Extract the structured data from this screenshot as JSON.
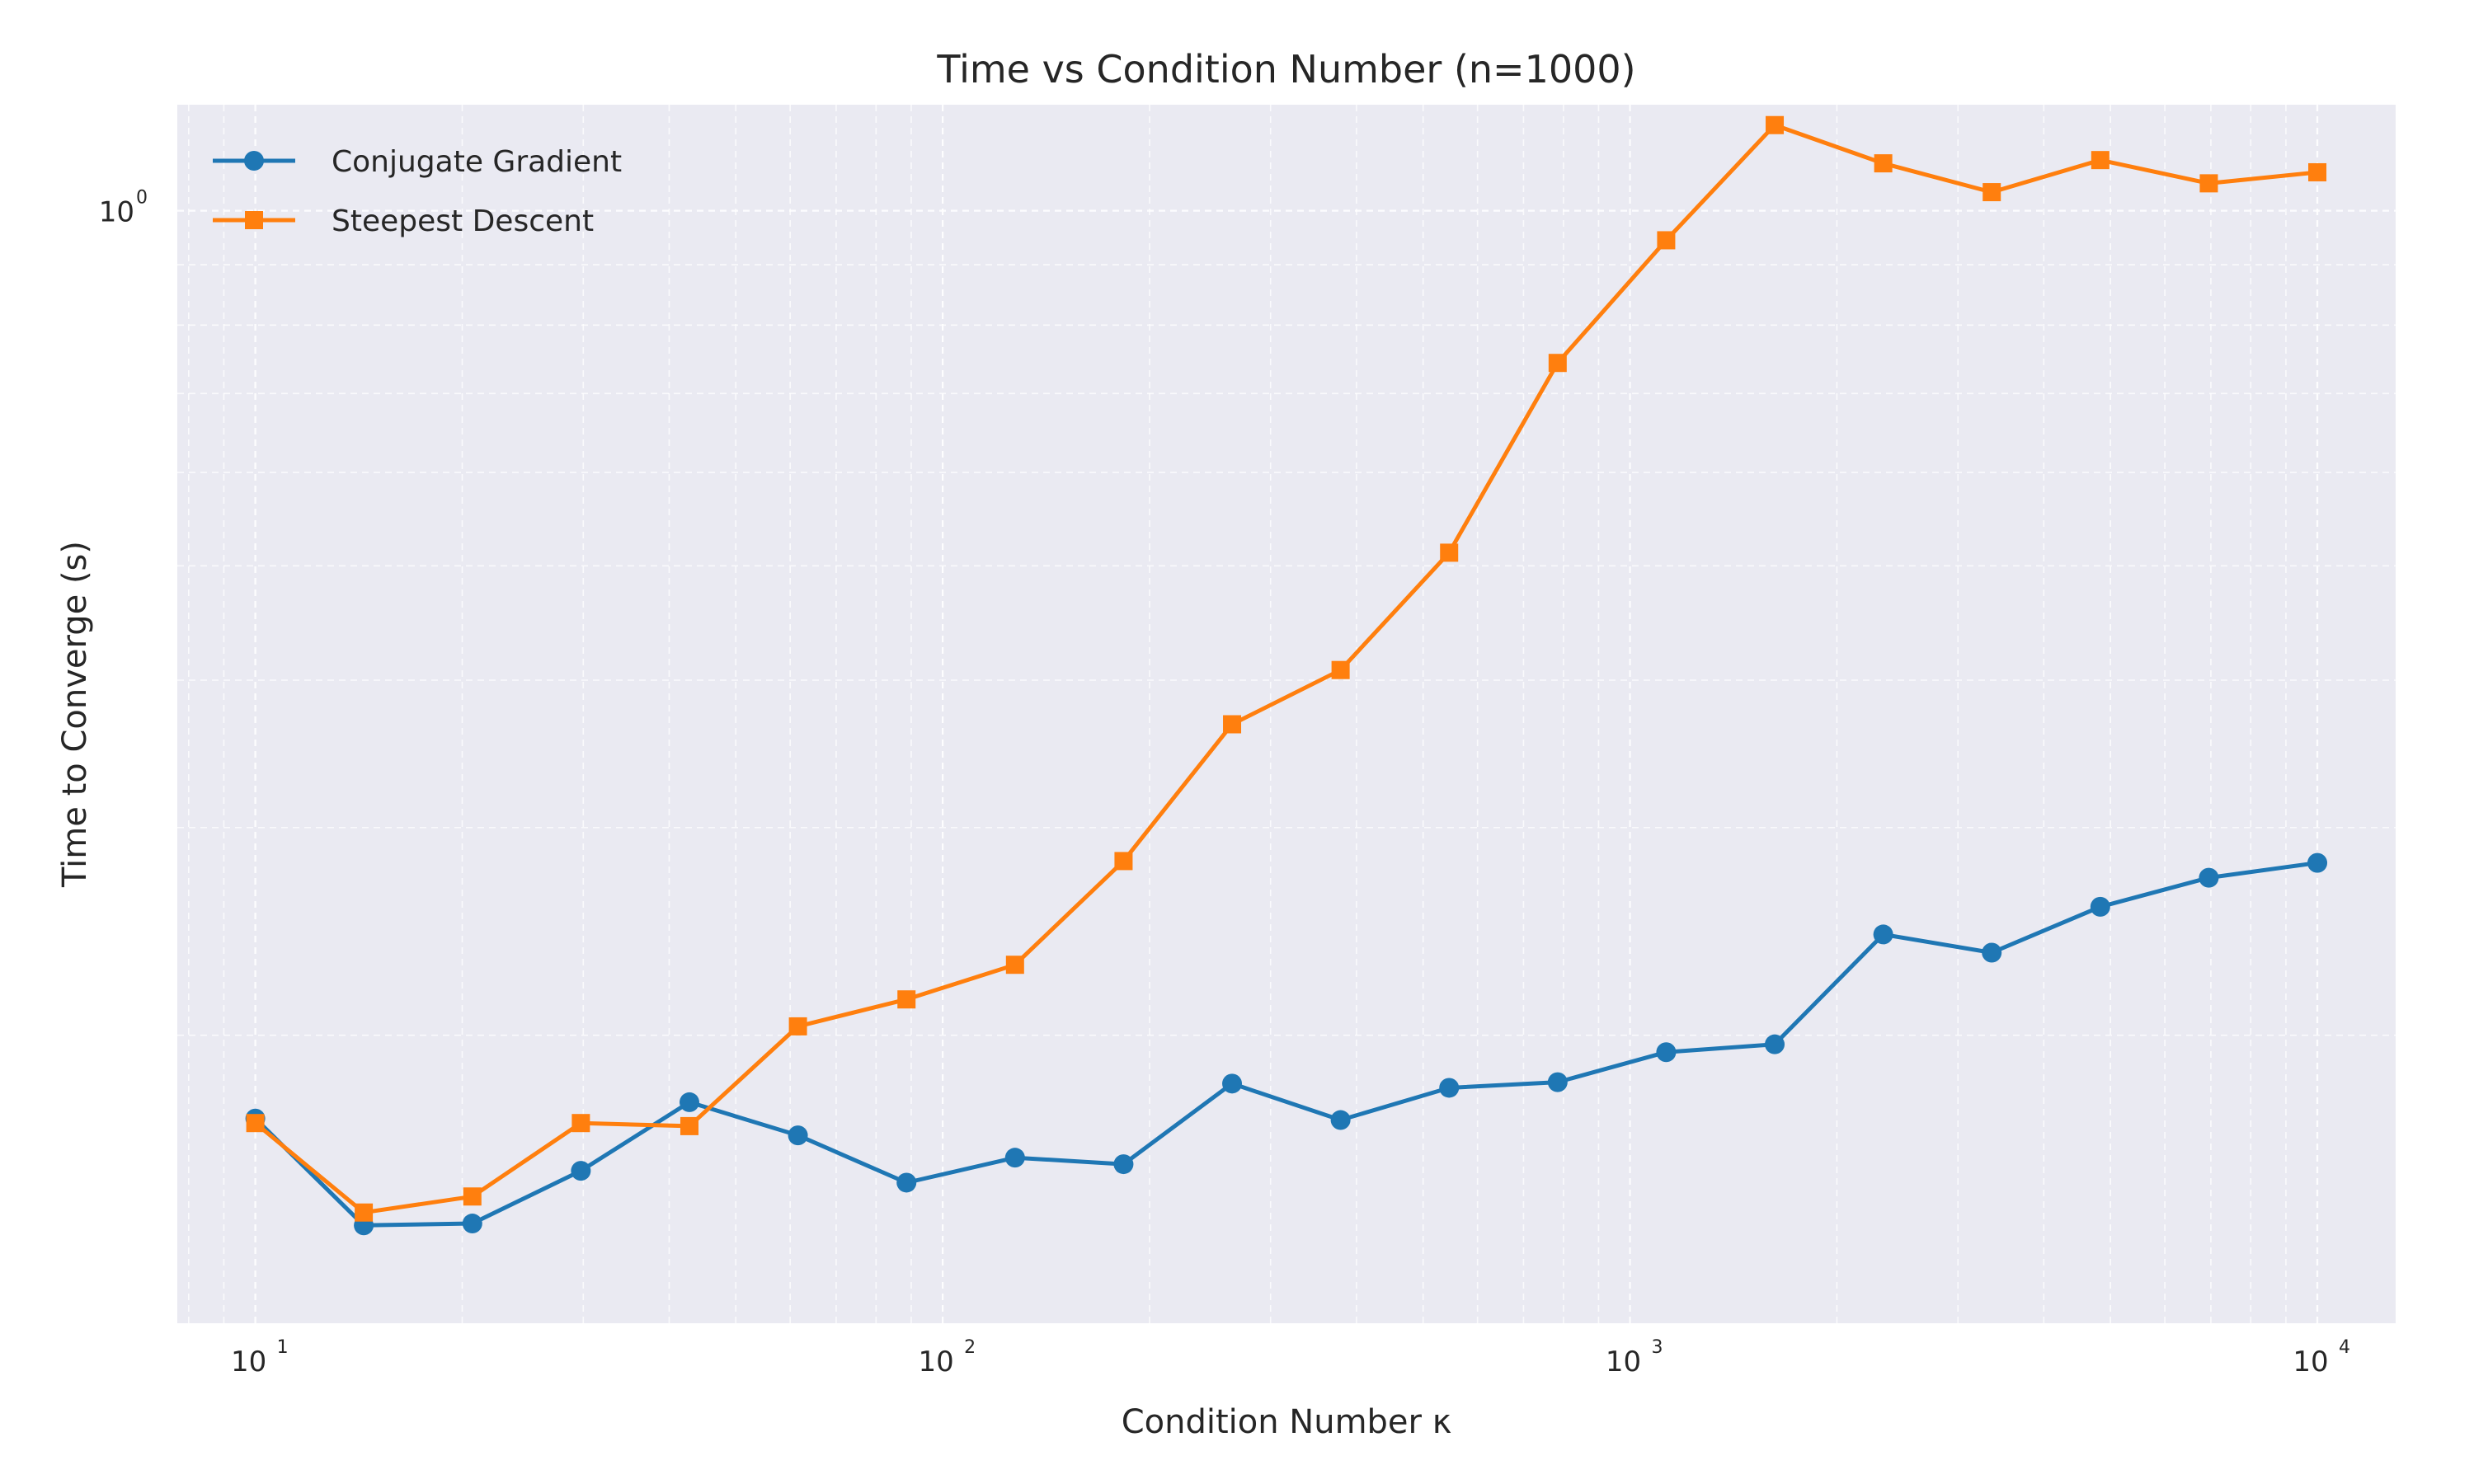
{
  "chart_data": {
    "type": "line",
    "title": "Time vs Condition Number (n=1000)",
    "xlabel": "Condition Number κ",
    "ylabel": "Time to Converge (s)",
    "xscale": "log",
    "yscale": "log",
    "xlim": [
      7.7,
      13000
    ],
    "ylim": [
      0.114,
      1.23
    ],
    "x_ticks": [
      {
        "value": 10,
        "base": "10",
        "exp": "1"
      },
      {
        "value": 100,
        "base": "10",
        "exp": "2"
      },
      {
        "value": 1000,
        "base": "10",
        "exp": "3"
      },
      {
        "value": 10000,
        "base": "10",
        "exp": "4"
      }
    ],
    "y_ticks": [
      {
        "value": 1.0,
        "base": "10",
        "exp": "0"
      }
    ],
    "grid": true,
    "legend_position": "top-left",
    "x": [
      10,
      14.38,
      20.69,
      29.76,
      42.81,
      61.58,
      88.59,
      127.43,
      183.3,
      263.67,
      379.27,
      545.56,
      784.76,
      1128.84,
      1623.78,
      2335.72,
      3359.82,
      4832.93,
      6951.93,
      10000
    ],
    "series": [
      {
        "name": "Conjugate Gradient",
        "color": "#1f77b4",
        "marker": "circle",
        "values": [
          0.17,
          0.138,
          0.1385,
          0.1535,
          0.1755,
          0.1645,
          0.15,
          0.1575,
          0.1555,
          0.182,
          0.1695,
          0.1805,
          0.1825,
          0.1935,
          0.1965,
          0.2435,
          0.235,
          0.257,
          0.272,
          0.28
        ]
      },
      {
        "name": "Steepest Descent",
        "color": "#ff7f0e",
        "marker": "square",
        "values": [
          0.1685,
          0.1415,
          0.146,
          0.1685,
          0.1675,
          0.2035,
          0.2145,
          0.2295,
          0.281,
          0.367,
          0.408,
          0.513,
          0.743,
          0.944,
          1.182,
          1.097,
          1.037,
          1.104,
          1.055,
          1.078
        ]
      }
    ]
  }
}
